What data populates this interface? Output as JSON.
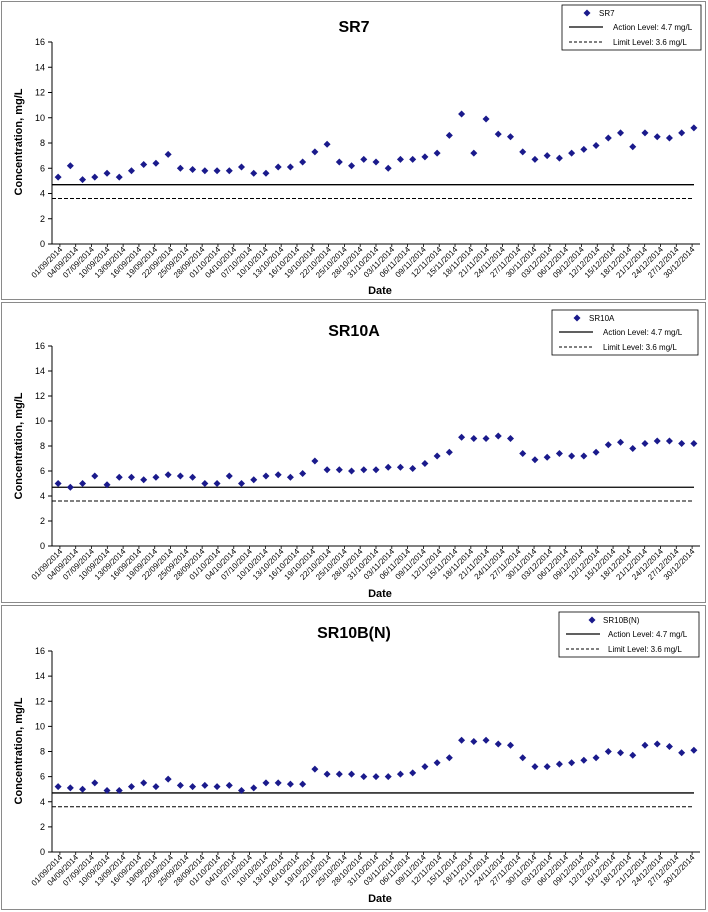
{
  "chart_data": [
    {
      "type": "scatter",
      "title": "SR7",
      "xlabel": "Date",
      "ylabel": "Concentration, mg/L",
      "ylim": [
        0,
        16
      ],
      "yticks": [
        "0",
        "2",
        "4",
        "6",
        "8",
        "10",
        "12",
        "14",
        "16"
      ],
      "legend_position": "top-right",
      "series": [
        {
          "name": "SR7",
          "values": [
            5.3,
            6.2,
            5.1,
            5.3,
            5.6,
            5.3,
            5.8,
            6.3,
            6.4,
            7.1,
            6.0,
            5.9,
            5.8,
            5.8,
            5.8,
            6.1,
            5.6,
            5.6,
            6.1,
            6.1,
            6.5,
            7.3,
            7.9,
            6.5,
            6.2,
            6.7,
            6.5,
            6.0,
            6.7,
            6.7,
            6.9,
            7.2,
            8.6,
            10.3,
            7.2,
            9.9,
            8.7,
            8.5,
            7.3,
            6.7,
            7.0,
            6.8,
            7.2,
            7.5,
            7.8,
            8.4,
            8.8,
            7.7,
            8.8,
            8.5,
            8.4,
            8.8,
            9.2
          ]
        }
      ],
      "reference_lines": [
        {
          "name": "Action Level: 4.7 mg/L",
          "value": 4.7,
          "style": "solid"
        },
        {
          "name": "Limit Level: 3.6 mg/L",
          "value": 3.6,
          "style": "dashed"
        }
      ]
    },
    {
      "type": "scatter",
      "title": "SR10A",
      "xlabel": "Date",
      "ylabel": "Concentration, mg/L",
      "ylim": [
        0,
        16
      ],
      "yticks": [
        "0",
        "2",
        "4",
        "6",
        "8",
        "10",
        "12",
        "14",
        "16"
      ],
      "legend_position": "top-right",
      "series": [
        {
          "name": "SR10A",
          "values": [
            5.0,
            4.7,
            5.0,
            5.6,
            4.9,
            5.5,
            5.5,
            5.3,
            5.5,
            5.7,
            5.6,
            5.5,
            5.0,
            5.0,
            5.6,
            5.0,
            5.3,
            5.6,
            5.7,
            5.5,
            5.8,
            6.8,
            6.1,
            6.1,
            6.0,
            6.1,
            6.1,
            6.3,
            6.3,
            6.2,
            6.6,
            7.2,
            7.5,
            8.7,
            8.6,
            8.6,
            8.8,
            8.6,
            7.4,
            6.9,
            7.1,
            7.4,
            7.2,
            7.2,
            7.5,
            8.1,
            8.3,
            7.8,
            8.2,
            8.4,
            8.4,
            8.2,
            8.2
          ]
        }
      ],
      "reference_lines": [
        {
          "name": "Action Level: 4.7 mg/L",
          "value": 4.7,
          "style": "solid"
        },
        {
          "name": "Limit Level: 3.6 mg/L",
          "value": 3.6,
          "style": "dashed"
        }
      ]
    },
    {
      "type": "scatter",
      "title": "SR10B(N)",
      "xlabel": "Date",
      "ylabel": "Concentration, mg/L",
      "ylim": [
        0,
        16
      ],
      "yticks": [
        "0",
        "2",
        "4",
        "6",
        "8",
        "10",
        "12",
        "14",
        "16"
      ],
      "legend_position": "top-right",
      "series": [
        {
          "name": "SR10B(N)",
          "values": [
            5.2,
            5.1,
            5.0,
            5.5,
            4.9,
            4.9,
            5.2,
            5.5,
            5.2,
            5.8,
            5.3,
            5.2,
            5.3,
            5.2,
            5.3,
            4.9,
            5.1,
            5.5,
            5.5,
            5.4,
            5.4,
            6.6,
            6.2,
            6.2,
            6.2,
            6.0,
            6.0,
            6.0,
            6.2,
            6.3,
            6.8,
            7.1,
            7.5,
            8.9,
            8.8,
            8.9,
            8.6,
            8.5,
            7.5,
            6.8,
            6.8,
            7.0,
            7.1,
            7.3,
            7.5,
            8.0,
            7.9,
            7.7,
            8.5,
            8.6,
            8.4,
            7.9,
            8.1
          ]
        }
      ],
      "reference_lines": [
        {
          "name": "Action Level: 4.7 mg/L",
          "value": 4.7,
          "style": "solid"
        },
        {
          "name": "Limit Level: 3.6 mg/L",
          "value": 3.6,
          "style": "dashed"
        }
      ]
    }
  ],
  "x_tick_labels": [
    [
      "01/09/2014",
      "04/09/2014",
      "07/09/2014",
      "10/09/2014",
      "13/09/2014",
      "16/09/2014",
      "19/09/2014",
      "22/09/2014",
      "25/09/2014",
      "28/09/2014",
      "01/10/2014",
      "04/10/2014",
      "07/10/2014",
      "10/10/2014",
      "13/10/2014",
      "16/10/2014",
      "19/10/2014",
      "22/10/2014",
      "25/10/2014",
      "28/10/2014",
      "31/10/2014",
      "03/11/2014",
      "06/11/2014",
      "09/11/2014",
      "12/11/2014",
      "15/11/2014",
      "18/11/2014",
      "21/11/2014",
      "24/11/2014",
      "27/11/2014",
      "30/11/2014",
      "03/12/2014",
      "06/12/2014",
      "09/12/2014",
      "12/12/2014",
      "15/12/2014",
      "18/12/2014",
      "21/12/2014",
      "24/12/2014",
      "27/12/2014",
      "30/12/2014"
    ],
    [
      "01/09/2014",
      "04/09/2014",
      "07/09/2014",
      "10/09/2014",
      "13/09/2014",
      "16/09/2014",
      "19/09/2014",
      "22/09/2014",
      "25/09/2014",
      "28/09/2014",
      "01/10/2014",
      "04/10/2014",
      "07/10/2014",
      "10/10/2014",
      "13/10/2014",
      "16/10/2014",
      "19/10/2014",
      "22/10/2014",
      "25/10/2014",
      "28/10/2014",
      "31/10/2014",
      "03/11/2014",
      "06/11/2014",
      "09/11/2014",
      "12/11/2014",
      "15/11/2014",
      "18/11/2014",
      "21/11/2014",
      "24/11/2014",
      "27/11/2014",
      "30/11/2014",
      "03/12/2014",
      "06/12/2014",
      "09/12/2014",
      "12/12/2014",
      "15/12/2014",
      "18/12/2014",
      "21/12/2014",
      "24/12/2014",
      "27/12/2014",
      "30/12/2014"
    ],
    [
      "01/09/2014",
      "04/09/2014",
      "07/09/2014",
      "10/09/2014",
      "13/09/2014",
      "16/09/2014",
      "19/09/2014",
      "22/09/2014",
      "25/09/2014",
      "28/09/2014",
      "01/10/2014",
      "04/10/2014",
      "07/10/2014",
      "10/10/2014",
      "13/10/2014",
      "16/10/2014",
      "19/10/2014",
      "22/10/2014",
      "25/10/2014",
      "28/10/2014",
      "31/10/2014",
      "03/11/2014",
      "06/11/2014",
      "09/11/2014",
      "12/11/2014",
      "15/11/2014",
      "18/11/2014",
      "21/11/2014",
      "24/11/2014",
      "27/11/2014",
      "30/11/2014",
      "03/12/2014",
      "06/12/2014",
      "09/12/2014",
      "12/12/2014",
      "15/12/2014",
      "18/12/2014",
      "21/12/2014",
      "24/12/2014",
      "27/12/2014",
      "30/12/2014"
    ]
  ],
  "colors": {
    "marker": "#1a1a8c",
    "line": "#000000",
    "border": "#8a8a8a"
  }
}
